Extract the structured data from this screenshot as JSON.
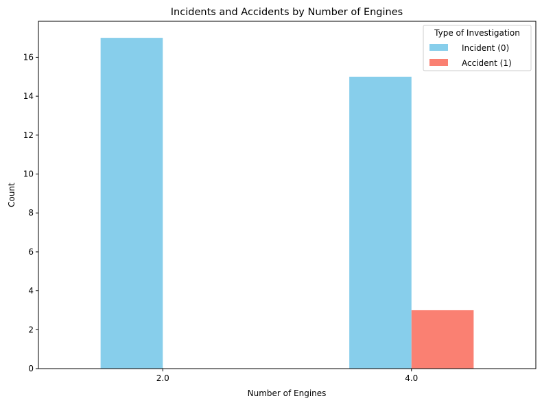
{
  "chart_data": {
    "type": "bar",
    "title": "Incidents and Accidents by Number of Engines",
    "xlabel": "Number of Engines",
    "ylabel": "Count",
    "categories": [
      "2.0",
      "4.0"
    ],
    "series": [
      {
        "name": "Incident (0)",
        "values": [
          17,
          15
        ],
        "color": "#87CEEB"
      },
      {
        "name": "Accident (1)",
        "values": [
          0,
          3
        ],
        "color": "#FA8072"
      }
    ],
    "ylim": [
      0,
      17.85
    ],
    "yticks": [
      0,
      2,
      4,
      6,
      8,
      10,
      12,
      14,
      16
    ],
    "grid": false,
    "legend": {
      "title": "Type of Investigation",
      "placement": "top-right"
    }
  }
}
